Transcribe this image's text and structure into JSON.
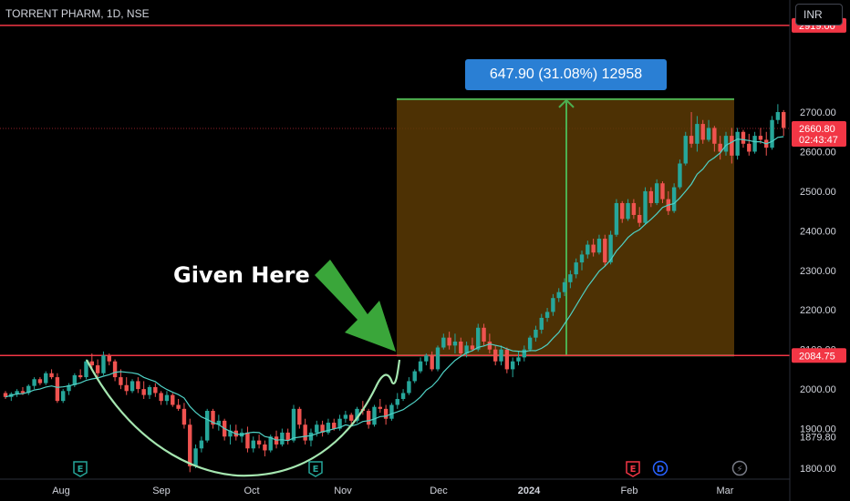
{
  "header": {
    "symbol": "TORRENT PHARM, 1D, NSE",
    "currency_button": "INR"
  },
  "annotation": {
    "text": "Given Here"
  },
  "measure": {
    "label": "647.90 (31.08%) 12958"
  },
  "colors": {
    "up": "#26a69a",
    "down": "#ef5350",
    "ma": "#4fd1c5",
    "level": "#f23645",
    "box_fill": "#5a3a05",
    "box_edge": "#4caf50",
    "arrow": "#4caf50",
    "cup": "#a5e6b0"
  },
  "chart_data": {
    "type": "candlestick",
    "interval": "1D",
    "price_range": [
      1790,
      2930
    ],
    "y_ticks": [
      "2700.00",
      "2600.00",
      "2500.00",
      "2400.00",
      "2300.00",
      "2200.00",
      "2100.00",
      "2000.00",
      "1900.00",
      "1800.00"
    ],
    "x_ticks": [
      "Aug",
      "Sep",
      "Oct",
      "Nov",
      "Dec",
      "2024",
      "Feb",
      "Mar"
    ],
    "horizontal_levels": [
      {
        "price": 2919.0,
        "label": "2919.00"
      },
      {
        "price": 2084.75,
        "label": "2084.75"
      }
    ],
    "last_price": {
      "value": "2660.80",
      "countdown": "02:43:47"
    },
    "extra_axis_label": "1879.80",
    "measure_range": {
      "from": 2084.75,
      "to": 2732.65,
      "change": "647.90",
      "percent": "31.08%",
      "bars": "12958"
    },
    "moving_average": "yes",
    "cup_pattern": "Aug to Nov",
    "event_markers": [
      {
        "label": "E",
        "period": "Aug"
      },
      {
        "label": "E",
        "period": "Oct"
      },
      {
        "label": "E",
        "period": "Feb"
      },
      {
        "label": "D",
        "period": "Feb"
      },
      {
        "label": "⚡",
        "period": "Mar"
      }
    ],
    "candles": [
      [
        1990,
        1995,
        1975,
        1980
      ],
      [
        1980,
        1992,
        1970,
        1988
      ],
      [
        1988,
        2000,
        1980,
        1995
      ],
      [
        1995,
        2005,
        1985,
        1990
      ],
      [
        1990,
        2012,
        1985,
        2008
      ],
      [
        2008,
        2030,
        2000,
        2025
      ],
      [
        2025,
        2030,
        2010,
        2015
      ],
      [
        2015,
        2045,
        2010,
        2040
      ],
      [
        2040,
        2050,
        2025,
        2030
      ],
      [
        2030,
        2040,
        1965,
        1970
      ],
      [
        1970,
        2000,
        1965,
        1995
      ],
      [
        1995,
        2015,
        1985,
        2010
      ],
      [
        2010,
        2040,
        2005,
        2035
      ],
      [
        2035,
        2050,
        2025,
        2030
      ],
      [
        2030,
        2075,
        2025,
        2070
      ],
      [
        2070,
        2090,
        2050,
        2060
      ],
      [
        2060,
        2075,
        2030,
        2040
      ],
      [
        2040,
        2095,
        2035,
        2085
      ],
      [
        2085,
        2090,
        2060,
        2070
      ],
      [
        2070,
        2075,
        2020,
        2030
      ],
      [
        2030,
        2050,
        2000,
        2010
      ],
      [
        2010,
        2030,
        1985,
        1995
      ],
      [
        1995,
        2025,
        1990,
        2020
      ],
      [
        2020,
        2030,
        1990,
        2000
      ],
      [
        2000,
        2020,
        1975,
        1985
      ],
      [
        1985,
        2010,
        1975,
        2005
      ],
      [
        2005,
        2015,
        1980,
        1990
      ],
      [
        1990,
        1995,
        1960,
        1970
      ],
      [
        1970,
        1995,
        1960,
        1985
      ],
      [
        1985,
        1990,
        1955,
        1960
      ],
      [
        1960,
        1975,
        1945,
        1950
      ],
      [
        1950,
        1965,
        1900,
        1910
      ],
      [
        1910,
        1925,
        1790,
        1805
      ],
      [
        1805,
        1860,
        1800,
        1850
      ],
      [
        1850,
        1880,
        1840,
        1870
      ],
      [
        1870,
        1950,
        1865,
        1945
      ],
      [
        1945,
        1950,
        1900,
        1910
      ],
      [
        1910,
        1935,
        1895,
        1920
      ],
      [
        1920,
        1925,
        1870,
        1880
      ],
      [
        1880,
        1910,
        1860,
        1895
      ],
      [
        1895,
        1910,
        1870,
        1880
      ],
      [
        1880,
        1900,
        1865,
        1890
      ],
      [
        1890,
        1905,
        1840,
        1850
      ],
      [
        1850,
        1880,
        1840,
        1870
      ],
      [
        1870,
        1885,
        1850,
        1860
      ],
      [
        1860,
        1870,
        1830,
        1845
      ],
      [
        1845,
        1885,
        1840,
        1880
      ],
      [
        1880,
        1895,
        1850,
        1860
      ],
      [
        1860,
        1900,
        1855,
        1890
      ],
      [
        1890,
        1900,
        1860,
        1870
      ],
      [
        1870,
        1960,
        1865,
        1950
      ],
      [
        1950,
        1955,
        1900,
        1910
      ],
      [
        1910,
        1925,
        1860,
        1870
      ],
      [
        1870,
        1900,
        1855,
        1890
      ],
      [
        1890,
        1920,
        1880,
        1910
      ],
      [
        1910,
        1920,
        1880,
        1890
      ],
      [
        1890,
        1925,
        1885,
        1915
      ],
      [
        1915,
        1925,
        1895,
        1900
      ],
      [
        1900,
        1935,
        1895,
        1925
      ],
      [
        1925,
        1945,
        1915,
        1935
      ],
      [
        1935,
        1940,
        1910,
        1920
      ],
      [
        1920,
        1955,
        1915,
        1950
      ],
      [
        1950,
        1970,
        1935,
        1945
      ],
      [
        1945,
        1950,
        1900,
        1910
      ],
      [
        1910,
        1960,
        1905,
        1955
      ],
      [
        1955,
        1975,
        1940,
        1950
      ],
      [
        1950,
        1960,
        1910,
        1925
      ],
      [
        1925,
        1965,
        1920,
        1960
      ],
      [
        1960,
        1990,
        1950,
        1975
      ],
      [
        1975,
        2000,
        1970,
        1990
      ],
      [
        1990,
        2030,
        1985,
        2020
      ],
      [
        2020,
        2050,
        2015,
        2045
      ],
      [
        2045,
        2080,
        2040,
        2070
      ],
      [
        2070,
        2090,
        2060,
        2085
      ],
      [
        2085,
        2095,
        2045,
        2050
      ],
      [
        2050,
        2110,
        2045,
        2105
      ],
      [
        2105,
        2140,
        2100,
        2130
      ],
      [
        2130,
        2145,
        2100,
        2110
      ],
      [
        2110,
        2140,
        2090,
        2120
      ],
      [
        2120,
        2130,
        2085,
        2090
      ],
      [
        2090,
        2120,
        2080,
        2110
      ],
      [
        2110,
        2130,
        2095,
        2100
      ],
      [
        2100,
        2165,
        2095,
        2155
      ],
      [
        2155,
        2165,
        2110,
        2120
      ],
      [
        2120,
        2140,
        2090,
        2100
      ],
      [
        2100,
        2110,
        2060,
        2070
      ],
      [
        2070,
        2110,
        2060,
        2100
      ],
      [
        2100,
        2105,
        2040,
        2050
      ],
      [
        2050,
        2080,
        2030,
        2070
      ],
      [
        2070,
        2095,
        2060,
        2080
      ],
      [
        2080,
        2110,
        2070,
        2100
      ],
      [
        2100,
        2135,
        2095,
        2130
      ],
      [
        2130,
        2160,
        2120,
        2150
      ],
      [
        2150,
        2190,
        2140,
        2180
      ],
      [
        2180,
        2205,
        2170,
        2195
      ],
      [
        2195,
        2240,
        2185,
        2230
      ],
      [
        2230,
        2255,
        2220,
        2245
      ],
      [
        2245,
        2280,
        2235,
        2270
      ],
      [
        2270,
        2300,
        2255,
        2290
      ],
      [
        2290,
        2330,
        2280,
        2320
      ],
      [
        2320,
        2350,
        2300,
        2340
      ],
      [
        2340,
        2375,
        2330,
        2365
      ],
      [
        2365,
        2380,
        2335,
        2345
      ],
      [
        2345,
        2390,
        2340,
        2380
      ],
      [
        2380,
        2390,
        2310,
        2320
      ],
      [
        2320,
        2400,
        2315,
        2390
      ],
      [
        2390,
        2480,
        2385,
        2470
      ],
      [
        2470,
        2475,
        2420,
        2430
      ],
      [
        2430,
        2480,
        2425,
        2470
      ],
      [
        2470,
        2480,
        2430,
        2440
      ],
      [
        2440,
        2460,
        2410,
        2420
      ],
      [
        2420,
        2510,
        2415,
        2500
      ],
      [
        2500,
        2510,
        2460,
        2470
      ],
      [
        2470,
        2530,
        2465,
        2520
      ],
      [
        2520,
        2525,
        2470,
        2480
      ],
      [
        2480,
        2500,
        2440,
        2450
      ],
      [
        2450,
        2520,
        2445,
        2510
      ],
      [
        2510,
        2580,
        2505,
        2570
      ],
      [
        2570,
        2650,
        2565,
        2640
      ],
      [
        2640,
        2700,
        2610,
        2620
      ],
      [
        2620,
        2690,
        2600,
        2670
      ],
      [
        2670,
        2680,
        2620,
        2630
      ],
      [
        2630,
        2680,
        2625,
        2660
      ],
      [
        2660,
        2665,
        2600,
        2620
      ],
      [
        2620,
        2640,
        2580,
        2600
      ],
      [
        2600,
        2650,
        2590,
        2640
      ],
      [
        2640,
        2660,
        2570,
        2590
      ],
      [
        2590,
        2660,
        2580,
        2650
      ],
      [
        2650,
        2655,
        2610,
        2620
      ],
      [
        2620,
        2645,
        2590,
        2600
      ],
      [
        2600,
        2650,
        2595,
        2640
      ],
      [
        2640,
        2660,
        2620,
        2630
      ],
      [
        2630,
        2650,
        2590,
        2610
      ],
      [
        2610,
        2690,
        2605,
        2680
      ],
      [
        2680,
        2720,
        2670,
        2700
      ],
      [
        2700,
        2705,
        2640,
        2660
      ]
    ]
  }
}
